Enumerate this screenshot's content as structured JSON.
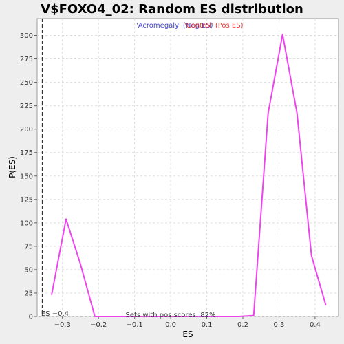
{
  "chart_data": {
    "type": "line",
    "title": "V$FOXO4_02: Random ES distribution",
    "xlabel": "ES",
    "ylabel": "P(ES)",
    "xlim": [
      -0.37,
      0.465
    ],
    "ylim": [
      0,
      318
    ],
    "x_ticks": [
      -0.3,
      -0.2,
      -0.1,
      0.0,
      0.1,
      0.2,
      0.3,
      0.4
    ],
    "x_tick_labels": [
      "−0.3",
      "−0.2",
      "−0.1",
      "0.0",
      "0.1",
      "0.2",
      "0.3",
      "0.4"
    ],
    "y_ticks": [
      0,
      25,
      50,
      75,
      100,
      125,
      150,
      175,
      200,
      225,
      250,
      275,
      300
    ],
    "y_tick_labels": [
      "0",
      "25",
      "50",
      "75",
      "100",
      "125",
      "150",
      "175",
      "200",
      "225",
      "250",
      "275",
      "300"
    ],
    "grid": true,
    "series": [
      {
        "color": "#ee44ee",
        "x": [
          -0.33,
          -0.29,
          -0.25,
          -0.21,
          -0.17,
          -0.13,
          -0.09,
          -0.05,
          -0.01,
          0.03,
          0.07,
          0.11,
          0.15,
          0.19,
          0.23,
          0.27,
          0.31,
          0.35,
          0.39,
          0.43
        ],
        "y": [
          23,
          104,
          56,
          0,
          0,
          0,
          0,
          0,
          0,
          0,
          0,
          0,
          0,
          0,
          1,
          217,
          301,
          217,
          65,
          12
        ]
      }
    ],
    "observed_es": {
      "x": -0.355,
      "label": "ES −0.4",
      "color": "#333333"
    },
    "legend": {
      "placement": "top-center",
      "entries": [
        {
          "label": "'Acromegaly' (Neg ES)",
          "color": "#4444cc"
        },
        {
          "label": "'Control' (Pos ES)",
          "color": "#ee3333"
        }
      ]
    },
    "annotation": "Sets with pos scores: 82%"
  }
}
